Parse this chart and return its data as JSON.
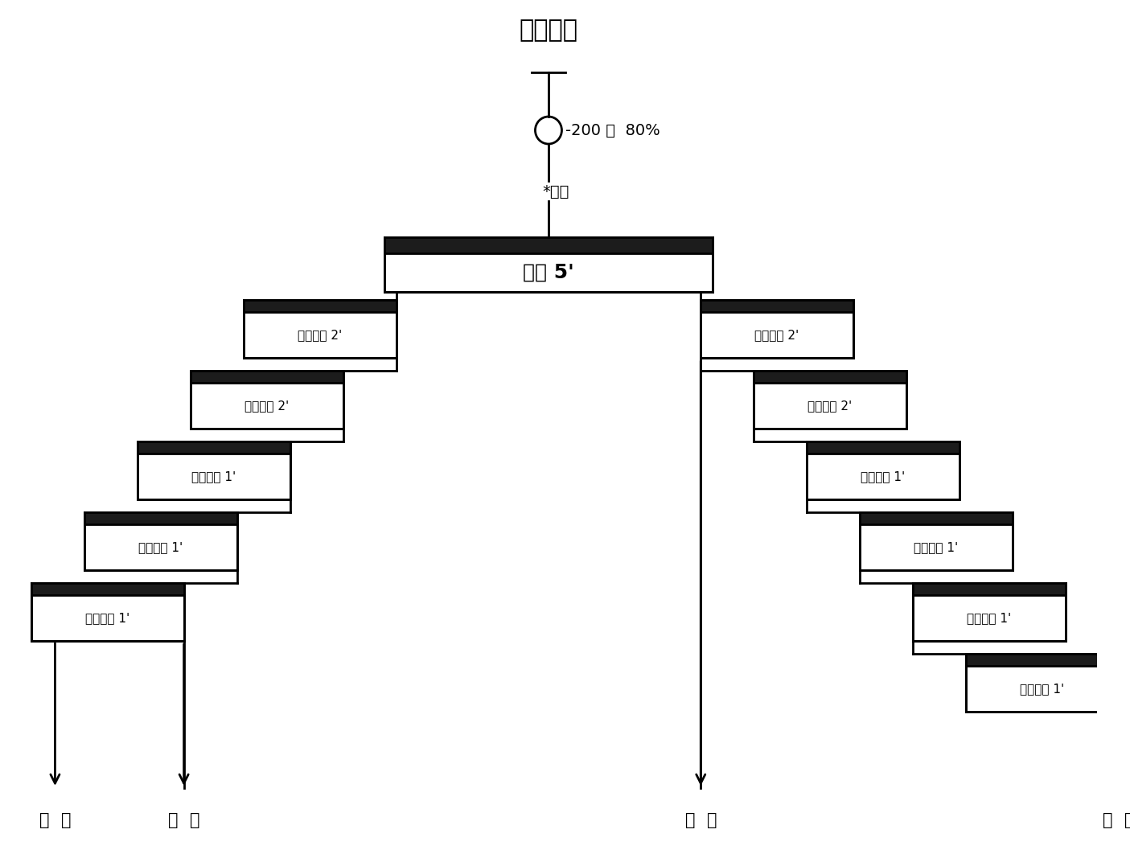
{
  "title": "入选尾矿",
  "feed_label": "-200 目  80%",
  "reagent_label": "*药剂",
  "rougher_label": "粗选 5'",
  "left_labels": [
    "一次精选 2'",
    "二次精选 2'",
    "三次精选 1'",
    "四次精选 1'",
    "五次精选 1'"
  ],
  "right_labels": [
    "一次扫选 2'",
    "二次扫选 2'",
    "三次扫选 1'",
    "四次扫选 1'",
    "五次扫选 1'",
    "六次扫选 1'"
  ],
  "out_labels": [
    "精  矿",
    "中  矿",
    "中  矿",
    "尾  矿"
  ],
  "lw": 2.0,
  "hdr_color": "#1c1c1c",
  "bg_color": "#ffffff"
}
